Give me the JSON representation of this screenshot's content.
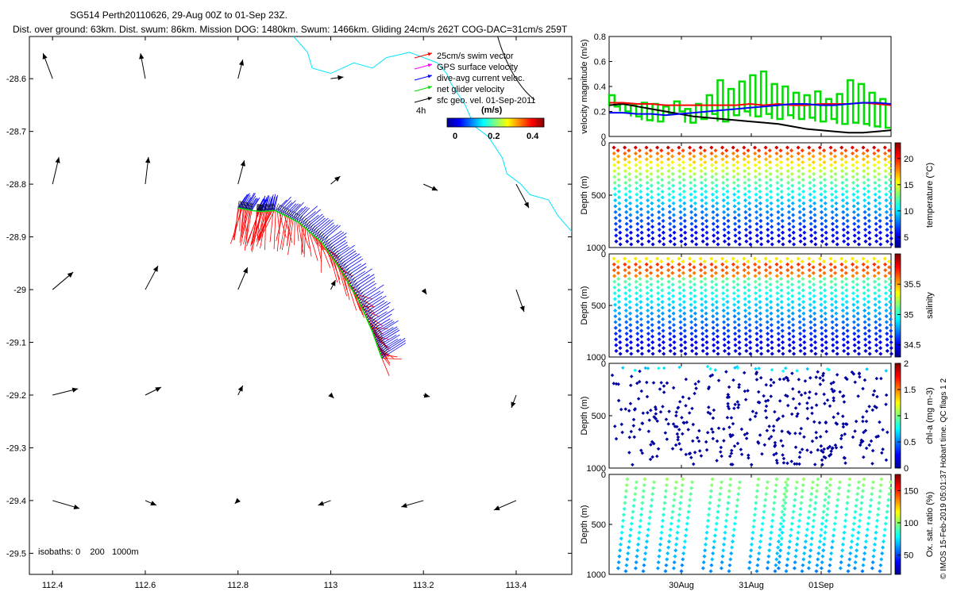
{
  "header": {
    "line1": "SG514 Perth20110626, 29-Aug 00Z to 01-Sep 23Z.",
    "line2": "Dist. over ground: 63km. Dist. swum: 86km. Mission DOG: 1480km. Swum: 1466km. Gliding 24cm/s 262T COG-DAC=31cm/s 259T"
  },
  "watermark": "© IMOS 15-Feb-2019 05:01:37 Hobart time. QC flags 1 2",
  "colors": {
    "swim": "#ff0000",
    "gps": "#ff00ff",
    "dac": "#0000ff",
    "net": "#00dd00",
    "sfc": "#000000",
    "coast": "#00e5ff"
  },
  "chart_data": [
    {
      "type": "scatter",
      "id": "map",
      "xlim": [
        112.35,
        113.52
      ],
      "ylim": [
        -29.54,
        -28.52
      ],
      "xticks": [
        "112.4",
        "112.6",
        "112.8",
        "113",
        "113.2",
        "113.4"
      ],
      "yticks": [
        "-28.6",
        "-28.7",
        "-28.8",
        "-28.9",
        "-29",
        "-29.1",
        "-29.2",
        "-29.3",
        "-29.4",
        "-29.5"
      ],
      "legend": {
        "position": "top-right",
        "entries": [
          "25cm/s swim vector",
          "GPS surface velocity",
          "dive-avg current veloc.",
          "net glider velocity",
          "sfc geo. vel. 01-Sep-2011"
        ],
        "time_label": "4h"
      },
      "colorbar": {
        "title": "(m/s)",
        "ticks": [
          "0",
          "0.2",
          "0.4"
        ],
        "range": [
          0,
          0.5
        ]
      },
      "annotation": "isobaths: 0    200   1000m",
      "track": [
        [
          112.8,
          -28.845
        ],
        [
          112.83,
          -28.85
        ],
        [
          112.85,
          -28.852
        ],
        [
          112.88,
          -28.85
        ],
        [
          112.93,
          -28.872
        ],
        [
          112.98,
          -28.91
        ],
        [
          113.02,
          -28.96
        ],
        [
          113.06,
          -29.02
        ],
        [
          113.09,
          -29.08
        ],
        [
          113.11,
          -29.13
        ]
      ],
      "coastline": [
        [
          112.92,
          -28.52
        ],
        [
          112.95,
          -28.55
        ],
        [
          112.96,
          -28.58
        ],
        [
          113.0,
          -28.59
        ],
        [
          113.05,
          -28.57
        ],
        [
          113.09,
          -28.58
        ],
        [
          113.12,
          -28.56
        ],
        [
          113.17,
          -28.55
        ],
        [
          113.2,
          -28.56
        ],
        [
          113.23,
          -28.57
        ],
        [
          113.25,
          -28.59
        ],
        [
          113.26,
          -28.61
        ],
        [
          113.29,
          -28.65
        ],
        [
          113.31,
          -28.69
        ],
        [
          113.34,
          -28.71
        ],
        [
          113.37,
          -28.75
        ],
        [
          113.38,
          -28.78
        ],
        [
          113.41,
          -28.8
        ],
        [
          113.43,
          -28.82
        ],
        [
          113.47,
          -28.83
        ],
        [
          113.49,
          -28.86
        ],
        [
          113.52,
          -28.89
        ]
      ],
      "geo_vectors": [
        {
          "x": 112.4,
          "y": -28.6,
          "u": -0.06,
          "v": 0.16
        },
        {
          "x": 112.6,
          "y": -28.6,
          "u": -0.03,
          "v": 0.16
        },
        {
          "x": 112.8,
          "y": -28.6,
          "u": 0.03,
          "v": 0.12
        },
        {
          "x": 113.0,
          "y": -28.6,
          "u": 0.08,
          "v": 0.01
        },
        {
          "x": 112.4,
          "y": -28.8,
          "u": 0.04,
          "v": 0.17
        },
        {
          "x": 112.6,
          "y": -28.8,
          "u": 0.02,
          "v": 0.17
        },
        {
          "x": 112.8,
          "y": -28.8,
          "u": 0.04,
          "v": 0.15
        },
        {
          "x": 113.0,
          "y": -28.8,
          "u": 0.06,
          "v": 0.05
        },
        {
          "x": 113.2,
          "y": -28.8,
          "u": 0.09,
          "v": -0.04
        },
        {
          "x": 113.4,
          "y": -28.8,
          "u": 0.08,
          "v": -0.15
        },
        {
          "x": 112.4,
          "y": -29.0,
          "u": 0.13,
          "v": 0.11
        },
        {
          "x": 112.6,
          "y": -29.0,
          "u": 0.08,
          "v": 0.15
        },
        {
          "x": 112.8,
          "y": -29.0,
          "u": 0.06,
          "v": 0.14
        },
        {
          "x": 113.0,
          "y": -29.0,
          "u": 0.03,
          "v": 0.06
        },
        {
          "x": 113.2,
          "y": -29.0,
          "u": 0.02,
          "v": -0.03
        },
        {
          "x": 113.4,
          "y": -29.0,
          "u": 0.05,
          "v": -0.14
        },
        {
          "x": 112.4,
          "y": -29.2,
          "u": 0.16,
          "v": 0.04
        },
        {
          "x": 112.6,
          "y": -29.2,
          "u": 0.1,
          "v": 0.05
        },
        {
          "x": 112.8,
          "y": -29.2,
          "u": 0.03,
          "v": 0.06
        },
        {
          "x": 113.0,
          "y": -29.2,
          "u": 0.02,
          "v": -0.02
        },
        {
          "x": 113.2,
          "y": -29.2,
          "u": 0.04,
          "v": -0.01
        },
        {
          "x": 113.4,
          "y": -29.2,
          "u": -0.03,
          "v": -0.08
        },
        {
          "x": 112.4,
          "y": -29.4,
          "u": 0.17,
          "v": -0.05
        },
        {
          "x": 112.6,
          "y": -29.4,
          "u": 0.07,
          "v": -0.03
        },
        {
          "x": 112.8,
          "y": -29.4,
          "u": -0.02,
          "v": -0.02
        },
        {
          "x": 113.0,
          "y": -29.4,
          "u": -0.08,
          "v": -0.03
        },
        {
          "x": 113.2,
          "y": -29.4,
          "u": -0.14,
          "v": -0.04
        },
        {
          "x": 113.4,
          "y": -29.4,
          "u": -0.14,
          "v": -0.06
        }
      ]
    },
    {
      "type": "line",
      "id": "velocity",
      "ylabel": "velocity magnitude (m/s)",
      "ylim": [
        0,
        0.8
      ],
      "yticks": [
        "0",
        "0.2",
        "0.4",
        "0.6",
        "0.8"
      ],
      "x": [
        0,
        0.05,
        0.1,
        0.15,
        0.2,
        0.25,
        0.3,
        0.35,
        0.4,
        0.45,
        0.5,
        0.55,
        0.6,
        0.65,
        0.7,
        0.75,
        0.8,
        0.85,
        0.9,
        0.95,
        1.0
      ],
      "series": [
        {
          "name": "sfc",
          "color": "#000000",
          "values": [
            0.25,
            0.26,
            0.24,
            0.22,
            0.2,
            0.18,
            0.16,
            0.15,
            0.14,
            0.13,
            0.12,
            0.11,
            0.1,
            0.08,
            0.06,
            0.05,
            0.04,
            0.03,
            0.03,
            0.04,
            0.05
          ]
        },
        {
          "name": "swim",
          "color": "#ff0000",
          "values": [
            0.27,
            0.27,
            0.26,
            0.26,
            0.25,
            0.25,
            0.25,
            0.25,
            0.25,
            0.25,
            0.26,
            0.25,
            0.26,
            0.25,
            0.25,
            0.26,
            0.26,
            0.26,
            0.27,
            0.26,
            0.25
          ]
        },
        {
          "name": "dac",
          "color": "#0000ff",
          "values": [
            0.19,
            0.19,
            0.18,
            0.18,
            0.17,
            0.18,
            0.19,
            0.2,
            0.21,
            0.22,
            0.23,
            0.24,
            0.25,
            0.26,
            0.26,
            0.25,
            0.25,
            0.26,
            0.27,
            0.27,
            0.26
          ]
        }
      ],
      "net_upper": [
        0.33,
        0.26,
        0.25,
        0.27,
        0.26,
        0.24,
        0.28,
        0.22,
        0.26,
        0.33,
        0.45,
        0.38,
        0.44,
        0.49,
        0.52,
        0.42,
        0.4,
        0.35,
        0.33,
        0.36,
        0.3,
        0.34,
        0.45,
        0.42,
        0.35,
        0.3
      ],
      "net_lower": [
        0.24,
        0.2,
        0.16,
        0.13,
        0.12,
        0.18,
        0.2,
        0.11,
        0.14,
        0.18,
        0.12,
        0.17,
        0.2,
        0.16,
        0.18,
        0.14,
        0.17,
        0.14,
        0.15,
        0.12,
        0.14,
        0.1,
        0.11,
        0.1,
        0.08,
        0.07
      ]
    },
    {
      "type": "scatter",
      "id": "temperature",
      "ylabel": "Depth (m)",
      "ylim": [
        1000,
        0
      ],
      "yticks": [
        "0",
        "500",
        "1000"
      ],
      "colorbar": {
        "label": "temperature (°C)",
        "ticks": [
          "5",
          "10",
          "15",
          "20"
        ],
        "range": [
          3,
          23
        ]
      },
      "profiles": 26,
      "surface_value": 22,
      "deep_value": 4.5
    },
    {
      "type": "scatter",
      "id": "salinity",
      "ylabel": "Depth (m)",
      "ylim": [
        1000,
        0
      ],
      "yticks": [
        "0",
        "500",
        "1000"
      ],
      "colorbar": {
        "label": "salinity",
        "ticks": [
          "34.5",
          "35",
          "35.5"
        ],
        "range": [
          34.3,
          36.0
        ]
      },
      "profiles": 26,
      "surface_value": 35.4,
      "max_value": 35.8,
      "deep_value": 34.45
    },
    {
      "type": "scatter",
      "id": "chla",
      "ylabel": "Depth (m)",
      "ylim": [
        1000,
        0
      ],
      "yticks": [
        "0",
        "500",
        "1000"
      ],
      "colorbar": {
        "label": "chl-a (mg m-3)",
        "ticks": [
          "0",
          "0.5",
          "1",
          "1.5",
          "2"
        ],
        "range": [
          0,
          2
        ]
      },
      "profiles": 26,
      "value": 0.05
    },
    {
      "type": "scatter",
      "id": "oxygen",
      "ylabel": "Depth (m)",
      "ylim": [
        1000,
        0
      ],
      "yticks": [
        "0",
        "500",
        "1000"
      ],
      "xticks": [
        "30Aug",
        "31Aug",
        "01Sep"
      ],
      "colorbar": {
        "label": "Ox. sat. ratio (%)",
        "ticks": [
          "50",
          "100",
          "150"
        ],
        "range": [
          20,
          175
        ]
      },
      "profiles": 15,
      "surface_value": 98,
      "deep_value": 62
    }
  ]
}
